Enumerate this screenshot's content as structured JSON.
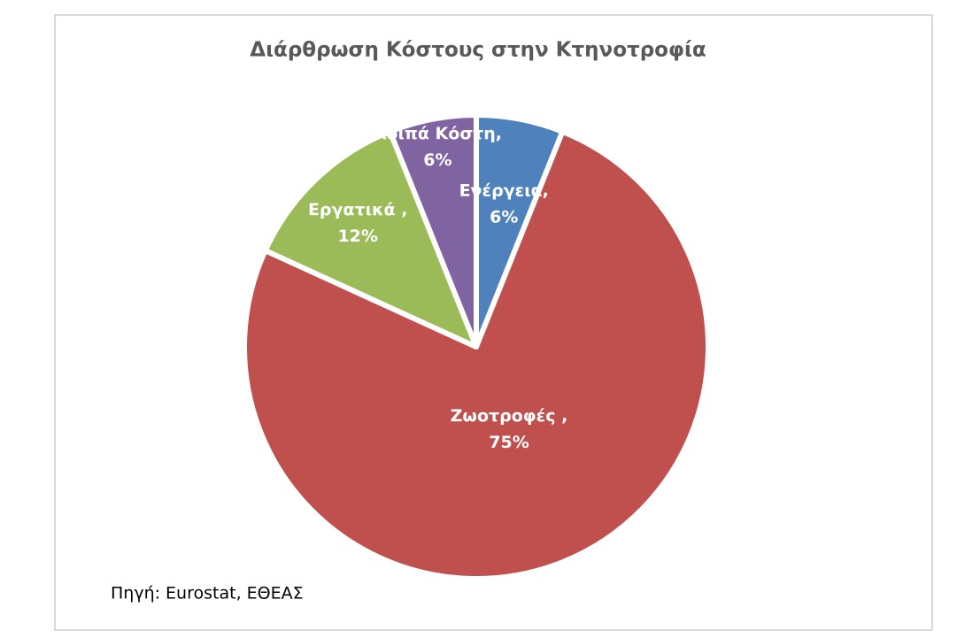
{
  "chart_data": {
    "type": "pie",
    "title": "Διάρθρωση Κόστους στην Κτηνοτροφία",
    "categories": [
      "Ενέργεια,",
      "Ζωοτροφές ,",
      "Εργατικά ,",
      "Λοιπά Κόστη,"
    ],
    "values": [
      6,
      75,
      12,
      6
    ],
    "value_labels": [
      "6%",
      "75%",
      "12%",
      "6%"
    ],
    "colors": [
      "#4f81bd",
      "#c0504d",
      "#9bbb59",
      "#8064a2"
    ],
    "source": "Πηγή: Eurostat, ΕΘΕΑΣ"
  }
}
